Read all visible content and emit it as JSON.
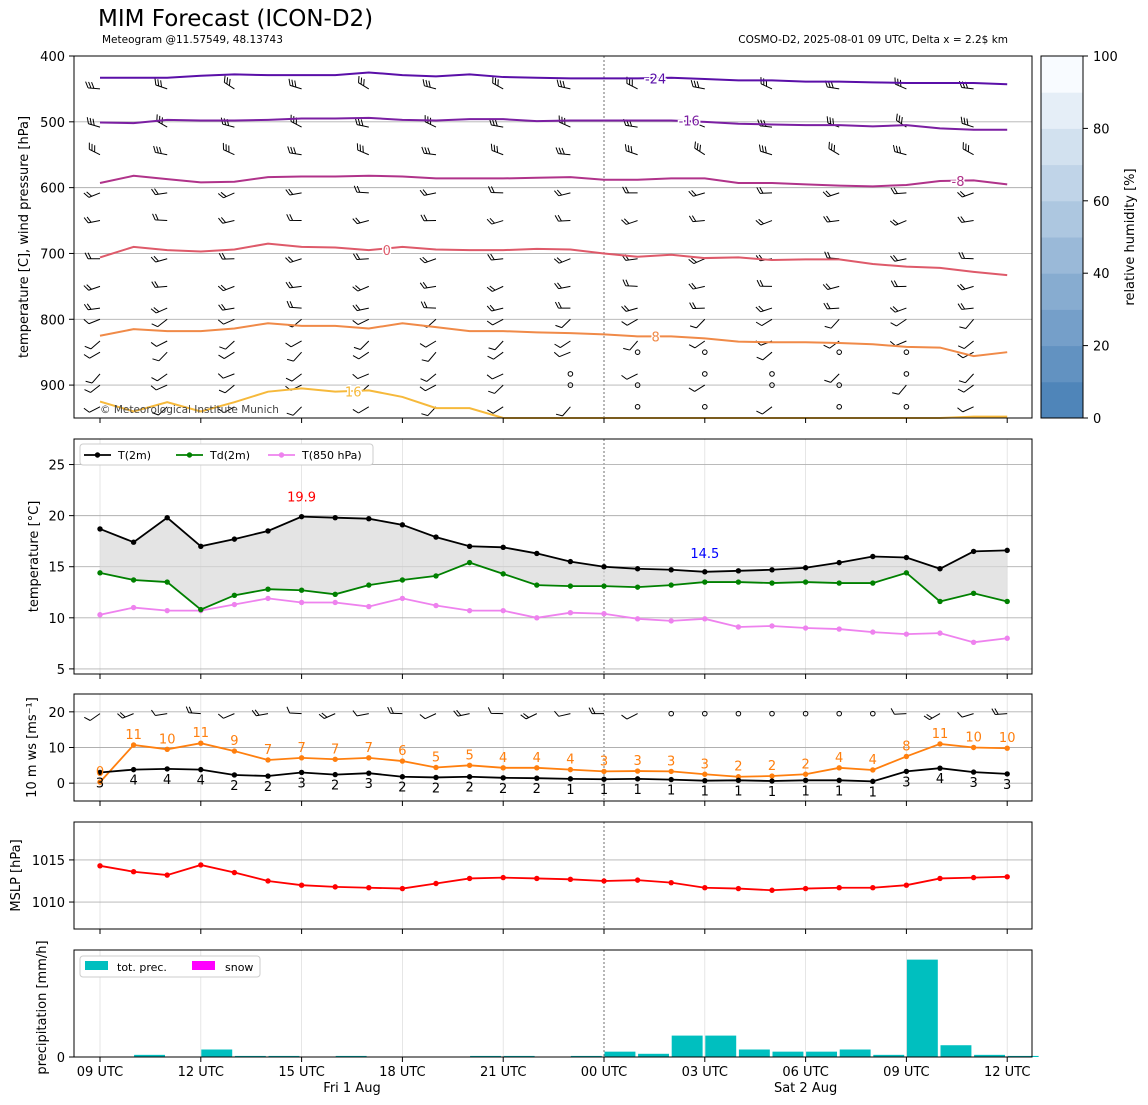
{
  "header": {
    "title": "MIM Forecast (ICON-D2)",
    "subtitle_left": "Meteogram @11.57549, 48.13743",
    "subtitle_right": "COSMO-D2, 2025-08-01 09 UTC, Delta x = 2.2$ km"
  },
  "colors": {
    "t2m": "#000000",
    "td2m": "#008000",
    "t850": "#ee82ee",
    "ws_gust": "#ff7f0e",
    "mslp": "#ff0000",
    "precip": "#00bfbf",
    "snow": "#ff00ff",
    "iso_m24": "#5a0fa8",
    "iso_m16": "#7b1fa2",
    "iso_m8": "#b0338a",
    "iso_0": "#de5a6a",
    "iso_8": "#f08a48",
    "iso_16": "#f6b93b"
  },
  "time_axis": {
    "tick_labels": [
      "09 UTC",
      "12 UTC",
      "15 UTC",
      "18 UTC",
      "21 UTC",
      "00 UTC",
      "03 UTC",
      "06 UTC",
      "09 UTC",
      "12 UTC"
    ],
    "date_labels": [
      "Fri 1 Aug",
      "Sat 2 Aug"
    ]
  },
  "chart_data": [
    {
      "type": "line",
      "panel": "upper-air",
      "ylabel": "temperature [C], wind pressure [hPa]",
      "ylim": [
        950,
        400
      ],
      "yticks": [
        400,
        500,
        600,
        700,
        800,
        900
      ],
      "colorbar": {
        "label": "relative humidity [%]",
        "range": [
          0,
          100
        ],
        "ticks": [
          0,
          20,
          40,
          60,
          80,
          100
        ]
      },
      "copyright": "© Meteorological Institute Munich",
      "isotherms": [
        {
          "label": "-24",
          "color": "#5a0fa8",
          "values": [
            433,
            433,
            433,
            430,
            428,
            429,
            429,
            429,
            425,
            429,
            431,
            428,
            432,
            433,
            434,
            434,
            434,
            433,
            435,
            437,
            437,
            439,
            439,
            440,
            441,
            441,
            441,
            443
          ]
        },
        {
          "label": "-16",
          "color": "#7b1fa2",
          "values": [
            501,
            502,
            497,
            498,
            498,
            497,
            495,
            495,
            494,
            497,
            498,
            496,
            496,
            499,
            498,
            498,
            498,
            498,
            500,
            503,
            504,
            505,
            505,
            507,
            505,
            510,
            512,
            512
          ]
        },
        {
          "label": "-8",
          "color": "#b0338a",
          "values": [
            593,
            582,
            587,
            592,
            591,
            584,
            583,
            583,
            582,
            583,
            586,
            586,
            586,
            585,
            584,
            588,
            588,
            586,
            586,
            593,
            593,
            595,
            597,
            598,
            596,
            590,
            589,
            595
          ]
        },
        {
          "label": "0",
          "color": "#de5a6a",
          "values": [
            706,
            690,
            695,
            697,
            694,
            685,
            690,
            691,
            695,
            690,
            694,
            695,
            695,
            693,
            694,
            700,
            705,
            702,
            707,
            706,
            710,
            709,
            709,
            716,
            720,
            722,
            728,
            733
          ]
        },
        {
          "label": "8",
          "color": "#f08a48",
          "values": [
            825,
            815,
            818,
            818,
            814,
            806,
            810,
            810,
            814,
            806,
            812,
            818,
            818,
            820,
            821,
            823,
            826,
            826,
            829,
            834,
            835,
            835,
            836,
            838,
            842,
            843,
            856,
            850
          ]
        },
        {
          "label": "16",
          "color": "#f6b93b",
          "values": [
            925,
            940,
            926,
            940,
            926,
            910,
            905,
            910,
            908,
            918,
            935,
            935,
            950,
            950,
            950,
            950,
            950,
            950,
            950,
            950,
            950,
            950,
            950,
            950,
            950,
            950,
            948,
            948
          ]
        }
      ]
    },
    {
      "type": "line",
      "panel": "temperature",
      "ylabel": "temperature [$^\\circ$C]",
      "ylim": [
        4.5,
        27.5
      ],
      "yticks": [
        5,
        10,
        15,
        20,
        25
      ],
      "max_annotation": "19.9",
      "min_annotation": "14.5",
      "series": [
        {
          "name": "T(2m)",
          "values": [
            18.7,
            17.4,
            19.8,
            17.0,
            17.7,
            18.5,
            19.9,
            19.8,
            19.7,
            19.1,
            17.9,
            17.0,
            16.9,
            16.3,
            15.5,
            15.0,
            14.8,
            14.7,
            14.5,
            14.6,
            14.7,
            14.9,
            15.4,
            16.0,
            15.9,
            14.8,
            16.5,
            16.6
          ]
        },
        {
          "name": "Td(2m)",
          "values": [
            14.4,
            13.7,
            13.5,
            10.8,
            12.2,
            12.8,
            12.7,
            12.3,
            13.2,
            13.7,
            14.1,
            15.4,
            14.3,
            13.2,
            13.1,
            13.1,
            13.0,
            13.2,
            13.5,
            13.5,
            13.4,
            13.5,
            13.4,
            13.4,
            14.4,
            11.6,
            12.4,
            11.6
          ]
        },
        {
          "name": "T(850 hPa)",
          "values": [
            10.3,
            11.0,
            10.7,
            10.7,
            11.3,
            11.9,
            11.5,
            11.5,
            11.1,
            11.9,
            11.2,
            10.7,
            10.7,
            10.0,
            10.5,
            10.4,
            9.9,
            9.7,
            9.9,
            9.1,
            9.2,
            9.0,
            8.9,
            8.6,
            8.4,
            8.5,
            7.6,
            8.0
          ]
        }
      ]
    },
    {
      "type": "line",
      "panel": "wind",
      "ylabel": "10 m ws [ms$^{-1}$]",
      "ylim": [
        -5,
        25
      ],
      "yticks": [
        0,
        10,
        20
      ],
      "series": [
        {
          "name": "ws",
          "values": [
            3,
            4,
            4,
            4,
            2,
            2,
            3,
            2,
            3,
            2,
            2,
            2,
            2,
            2,
            1,
            1,
            1,
            1,
            1,
            1,
            1,
            1,
            1,
            1,
            3,
            4,
            3,
            3
          ],
          "plot": [
            3,
            3.8,
            4,
            3.8,
            2.3,
            2,
            3,
            2.4,
            2.8,
            1.8,
            1.6,
            1.8,
            1.5,
            1.4,
            1.2,
            1.1,
            1.2,
            1,
            0.7,
            0.8,
            0.6,
            0.8,
            0.8,
            0.5,
            3.3,
            4.2,
            3.1,
            2.6
          ]
        },
        {
          "name": "gust",
          "values": [
            0,
            11,
            10,
            11,
            9,
            7,
            7,
            7,
            7,
            6,
            5,
            5,
            4,
            4,
            4,
            3,
            3,
            3,
            3,
            2,
            2,
            2,
            4,
            4,
            8,
            11,
            10,
            10
          ],
          "plot": [
            0.3,
            10.7,
            9.5,
            11.2,
            9,
            6.5,
            7.1,
            6.7,
            7.1,
            6.2,
            4.4,
            5,
            4.3,
            4.3,
            3.8,
            3.3,
            3.4,
            3.3,
            2.5,
            1.8,
            2,
            2.5,
            4.3,
            3.7,
            7.5,
            11,
            10,
            9.8
          ]
        }
      ]
    },
    {
      "type": "line",
      "panel": "mslp",
      "ylabel": "MSLP [hPa]",
      "ylim": [
        1006.8,
        1019.5
      ],
      "yticks": [
        1010,
        1015
      ],
      "series": [
        {
          "name": "MSLP",
          "values": [
            1014.3,
            1013.6,
            1013.2,
            1014.4,
            1013.5,
            1012.5,
            1012.0,
            1011.8,
            1011.7,
            1011.6,
            1012.2,
            1012.8,
            1012.9,
            1012.8,
            1012.7,
            1012.5,
            1012.6,
            1012.3,
            1011.7,
            1011.6,
            1011.4,
            1011.6,
            1011.7,
            1011.7,
            1012.0,
            1012.8,
            1012.9,
            1013.0
          ]
        }
      ]
    },
    {
      "type": "bar",
      "panel": "precipitation",
      "ylabel": "precipitation [mm/h]",
      "ylim": [
        0,
        1
      ],
      "yticks": [
        0
      ],
      "series": [
        {
          "name": "tot. prec.",
          "values": [
            0,
            0.02,
            0,
            0.07,
            0.01,
            0.01,
            0,
            0.01,
            0,
            0,
            0,
            0.01,
            0.01,
            0,
            0.01,
            0.05,
            0.03,
            0.2,
            0.2,
            0.07,
            0.05,
            0.05,
            0.07,
            0.02,
            0.91,
            0.11,
            0.02,
            0.01
          ]
        },
        {
          "name": "snow",
          "values": [
            0,
            0,
            0,
            0,
            0,
            0,
            0,
            0,
            0,
            0,
            0,
            0,
            0,
            0,
            0,
            0,
            0,
            0,
            0,
            0,
            0,
            0,
            0,
            0,
            0,
            0,
            0,
            0
          ]
        }
      ]
    }
  ]
}
